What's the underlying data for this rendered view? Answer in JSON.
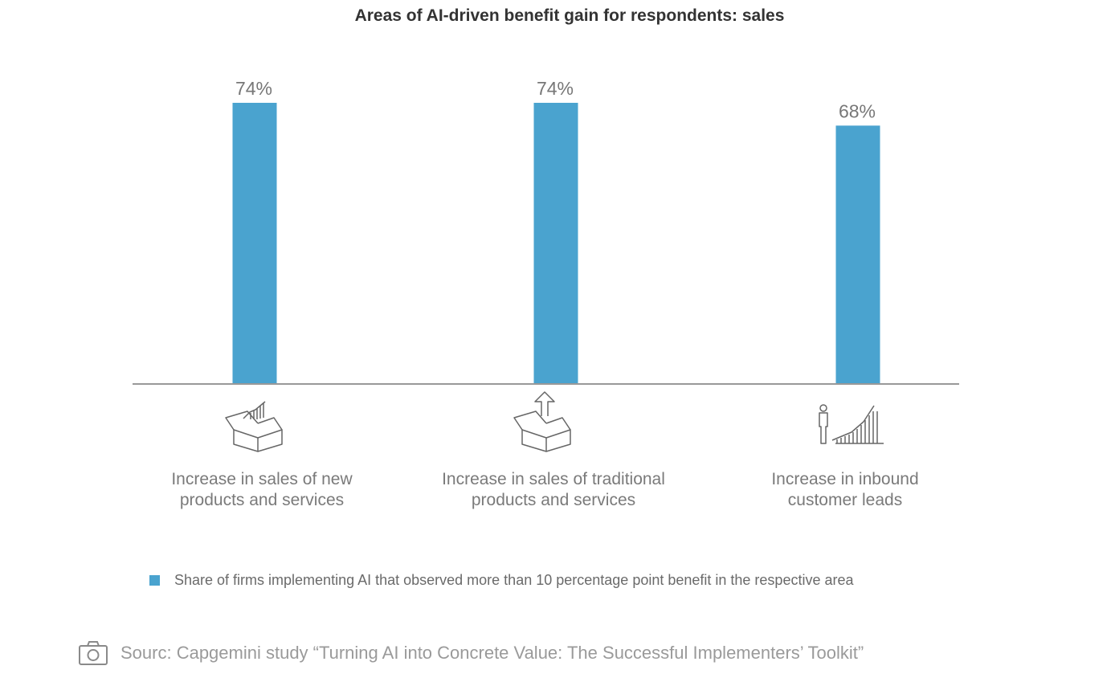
{
  "chart_data": {
    "type": "bar",
    "title": "Areas of AI-driven benefit gain for respondents: sales",
    "categories": [
      [
        "Increase in sales of new",
        "products and services"
      ],
      [
        "Increase in sales of traditional",
        "products and services"
      ],
      [
        "Increase in inbound",
        "customer leads"
      ]
    ],
    "category_icons": [
      "open-box-growth-chart-icon",
      "open-box-up-arrow-icon",
      "person-growth-chart-icon"
    ],
    "values": [
      74,
      74,
      68
    ],
    "value_labels": [
      "74%",
      "74%",
      "68%"
    ],
    "series": [
      {
        "name": "Share of firms implementing AI that observed more than 10 percentage point benefit in the respective area",
        "values": [
          74,
          74,
          68
        ]
      }
    ],
    "ylim": [
      0,
      100
    ],
    "grid": false,
    "legend_position": "bottom-left",
    "colors": {
      "bar": "#4aa3cf",
      "axis": "#999999",
      "value_label": "#777777"
    }
  },
  "legend": {
    "label": "Share of firms implementing AI that observed more than 10 percentage point benefit in the respective area",
    "color": "#4aa3cf"
  },
  "source": {
    "text": "Sourc: Capgemini study “Turning AI into Concrete Value: The Successful Implementers’ Toolkit”",
    "icon": "camera-icon"
  }
}
